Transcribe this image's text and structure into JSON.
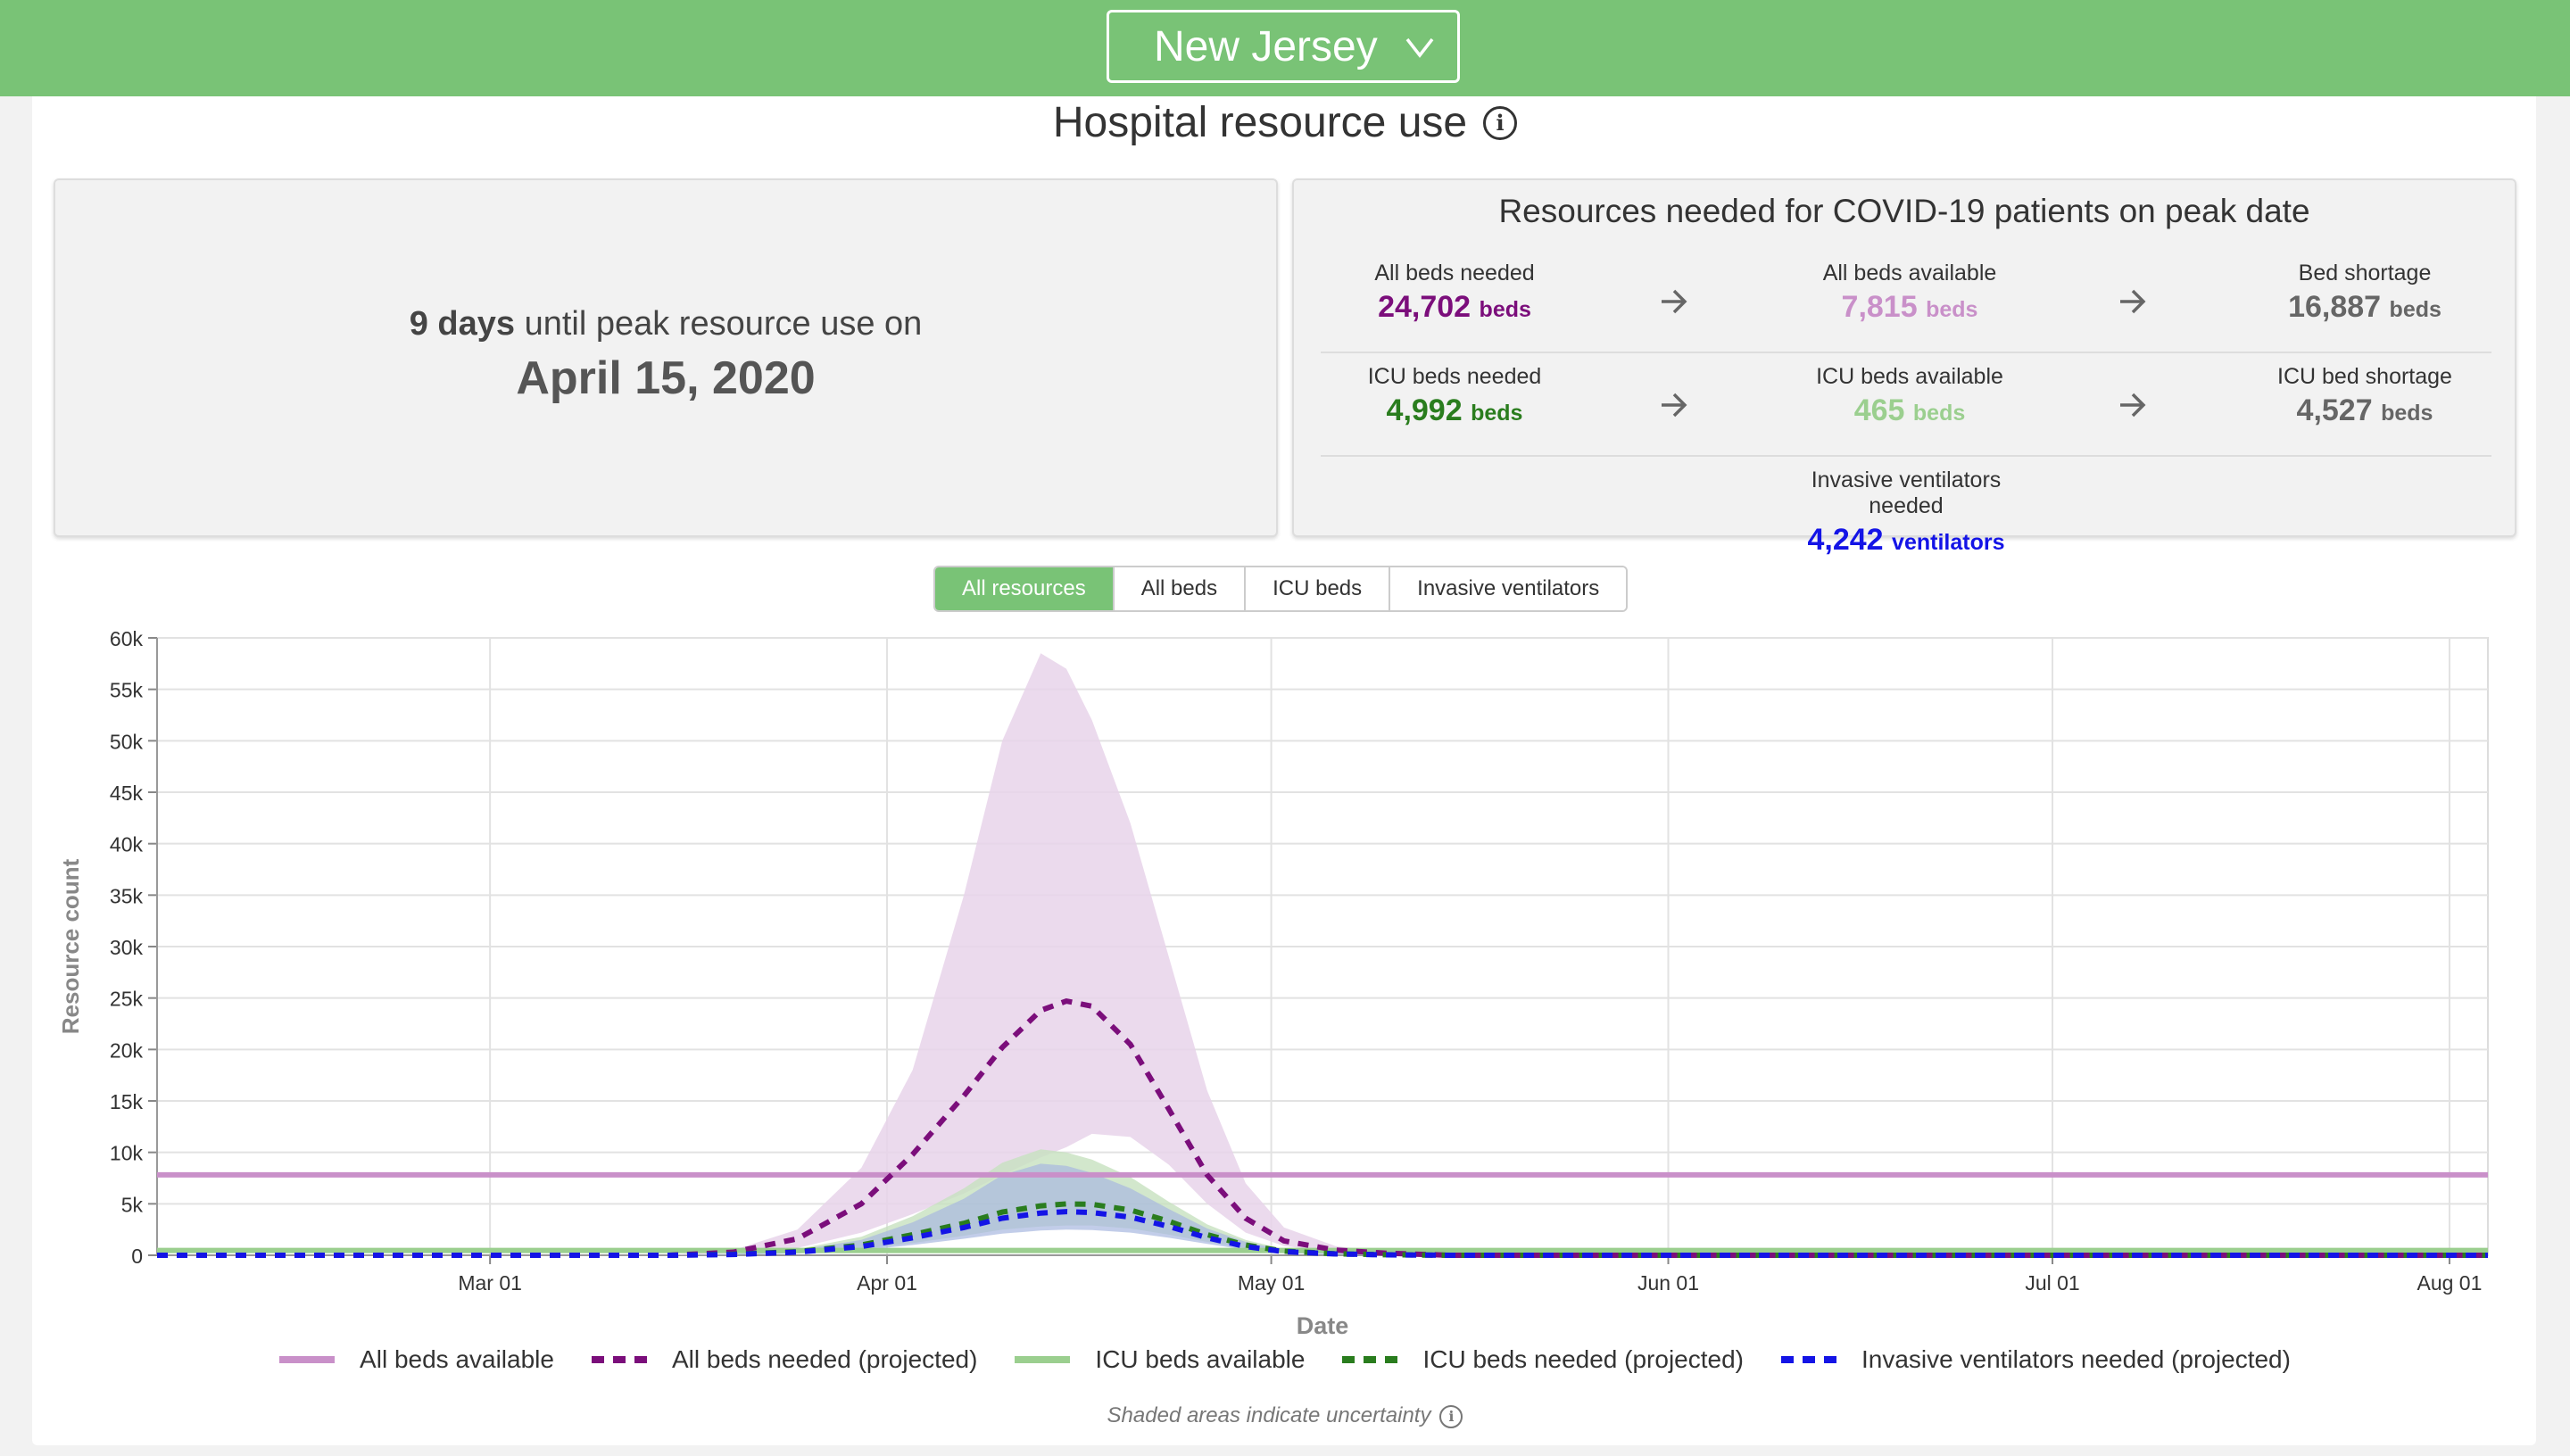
{
  "header": {
    "state": "New Jersey"
  },
  "page_title": "Hospital resource use",
  "peak": {
    "days": "9",
    "days_word": "days",
    "text": "until peak resource use on",
    "date": "April 15, 2020"
  },
  "resources": {
    "title": "Resources needed for COVID-19 patients on peak date",
    "all_beds_needed": {
      "label": "All beds needed",
      "value": "24,702",
      "unit": "beds"
    },
    "all_beds_available": {
      "label": "All beds available",
      "value": "7,815",
      "unit": "beds"
    },
    "bed_shortage": {
      "label": "Bed shortage",
      "value": "16,887",
      "unit": "beds"
    },
    "icu_beds_needed": {
      "label": "ICU beds needed",
      "value": "4,992",
      "unit": "beds"
    },
    "icu_beds_available": {
      "label": "ICU beds available",
      "value": "465",
      "unit": "beds"
    },
    "icu_bed_shortage": {
      "label": "ICU bed shortage",
      "value": "4,527",
      "unit": "beds"
    },
    "ventilators_needed": {
      "label": "Invasive ventilators needed",
      "value": "4,242",
      "unit": "ventilators"
    }
  },
  "tabs": [
    {
      "label": "All resources",
      "active": true
    },
    {
      "label": "All beds",
      "active": false
    },
    {
      "label": "ICU beds",
      "active": false
    },
    {
      "label": "Invasive ventilators",
      "active": false
    }
  ],
  "colors": {
    "header_green": "#79c376",
    "all_beds": "#7b0e7b",
    "all_beds_available": "#c990c9",
    "all_beds_band": "#e8d3ea",
    "icu_beds": "#2a7d1e",
    "icu_available": "#9bcf8f",
    "icu_band": "#c7e1bf",
    "ventilators": "#1414e6",
    "vent_band": "#a8b8e0"
  },
  "chart_data": {
    "type": "line",
    "ylabel": "Resource count",
    "xlabel": "Date",
    "ylim": [
      0,
      60000
    ],
    "yticks": [
      0,
      5000,
      10000,
      15000,
      20000,
      25000,
      30000,
      35000,
      40000,
      45000,
      50000,
      55000,
      60000
    ],
    "ytick_labels": [
      "0",
      "5k",
      "10k",
      "15k",
      "20k",
      "25k",
      "30k",
      "35k",
      "40k",
      "45k",
      "50k",
      "55k",
      "60k"
    ],
    "xlim": [
      "2020-02-04",
      "2020-08-04"
    ],
    "xticks": [
      "2020-03-01",
      "2020-04-01",
      "2020-05-01",
      "2020-06-01",
      "2020-07-01",
      "2020-08-01"
    ],
    "xtick_labels": [
      "Mar 01",
      "Apr 01",
      "May 01",
      "Jun 01",
      "Jul 01",
      "Aug 01"
    ],
    "grid": true,
    "x": [
      "2020-02-04",
      "2020-03-01",
      "2020-03-15",
      "2020-03-20",
      "2020-03-25",
      "2020-03-30",
      "2020-04-03",
      "2020-04-07",
      "2020-04-10",
      "2020-04-13",
      "2020-04-15",
      "2020-04-17",
      "2020-04-20",
      "2020-04-23",
      "2020-04-26",
      "2020-04-29",
      "2020-05-02",
      "2020-05-06",
      "2020-05-10",
      "2020-05-15",
      "2020-06-01",
      "2020-07-01",
      "2020-08-04"
    ],
    "series": [
      {
        "name": "All beds available",
        "style": "solid",
        "constant": 7815
      },
      {
        "name": "All beds needed (projected)",
        "style": "dashed",
        "values": [
          0,
          0,
          0,
          300,
          1600,
          5000,
          9800,
          15500,
          20200,
          23800,
          24702,
          24200,
          20500,
          14200,
          7800,
          3600,
          1400,
          500,
          200,
          0,
          0,
          0,
          0
        ],
        "band_lower": [
          0,
          0,
          0,
          200,
          700,
          2200,
          4000,
          6000,
          7800,
          9500,
          10500,
          11800,
          11500,
          8800,
          5000,
          2200,
          900,
          300,
          100,
          0,
          0,
          0,
          0
        ],
        "band_upper": [
          0,
          0,
          0,
          500,
          2500,
          8500,
          18000,
          35000,
          50000,
          58500,
          57000,
          52000,
          42000,
          29000,
          16000,
          7000,
          2700,
          900,
          300,
          0,
          0,
          0,
          0
        ]
      },
      {
        "name": "ICU beds available",
        "style": "solid",
        "constant": 465
      },
      {
        "name": "ICU beds needed (projected)",
        "style": "dashed",
        "values": [
          0,
          0,
          0,
          100,
          350,
          1000,
          2000,
          3100,
          4200,
          4800,
          4992,
          4950,
          4400,
          3300,
          2000,
          1000,
          400,
          150,
          50,
          0,
          0,
          0,
          0
        ],
        "band_lower": [
          0,
          0,
          0,
          60,
          200,
          600,
          1200,
          1900,
          2500,
          2800,
          2900,
          2900,
          2600,
          2000,
          1300,
          700,
          250,
          100,
          30,
          0,
          0,
          0,
          0
        ],
        "band_upper": [
          0,
          0,
          0,
          150,
          600,
          1800,
          3800,
          6500,
          9000,
          10300,
          10000,
          9300,
          7600,
          5200,
          3000,
          1500,
          600,
          200,
          70,
          0,
          0,
          0,
          0
        ]
      },
      {
        "name": "Invasive ventilators needed (projected)",
        "style": "dashed",
        "values": [
          0,
          0,
          0,
          80,
          300,
          850,
          1700,
          2700,
          3600,
          4100,
          4242,
          4150,
          3700,
          2800,
          1700,
          850,
          350,
          130,
          40,
          0,
          0,
          0,
          0
        ],
        "band_lower": [
          0,
          0,
          0,
          50,
          170,
          500,
          1000,
          1600,
          2100,
          2400,
          2500,
          2450,
          2200,
          1700,
          1100,
          550,
          200,
          80,
          25,
          0,
          0,
          0,
          0
        ],
        "band_upper": [
          0,
          0,
          0,
          130,
          500,
          1500,
          3200,
          5500,
          7800,
          8900,
          8700,
          8000,
          6500,
          4500,
          2600,
          1300,
          500,
          170,
          60,
          0,
          0,
          0,
          0
        ]
      }
    ],
    "legend_position": "bottom",
    "footnote": "Shaded areas indicate uncertainty"
  }
}
